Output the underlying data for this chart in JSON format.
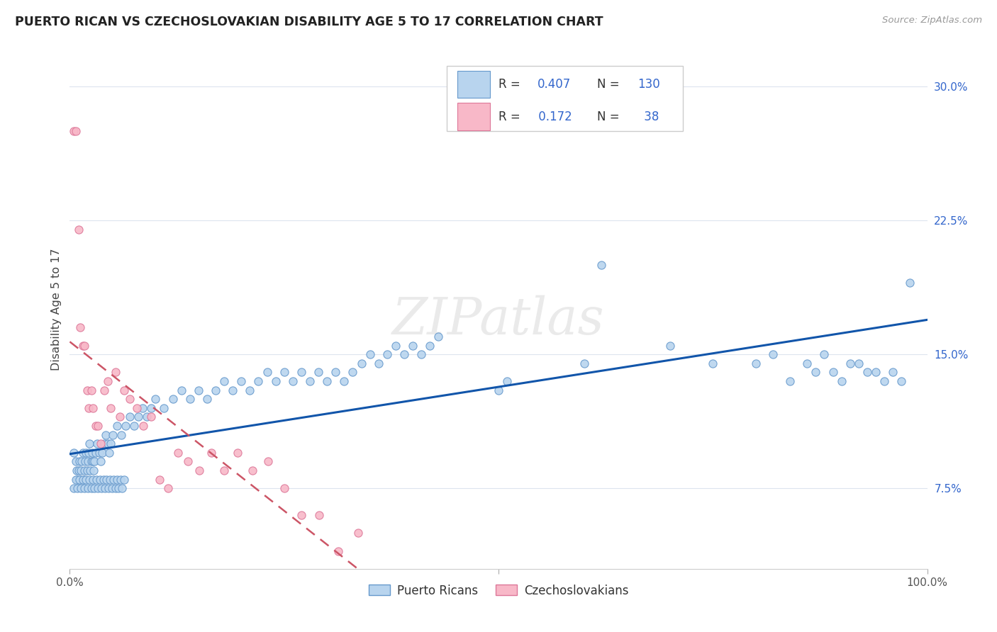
{
  "title": "PUERTO RICAN VS CZECHOSLOVAKIAN DISABILITY AGE 5 TO 17 CORRELATION CHART",
  "source": "Source: ZipAtlas.com",
  "ylabel": "Disability Age 5 to 17",
  "ytick_values": [
    0.075,
    0.15,
    0.225,
    0.3
  ],
  "ytick_labels": [
    "7.5%",
    "15.0%",
    "22.5%",
    "30.0%"
  ],
  "xlim": [
    0.0,
    1.0
  ],
  "ylim": [
    0.03,
    0.32
  ],
  "blue_face_color": "#b8d4ee",
  "blue_edge_color": "#6699cc",
  "pink_face_color": "#f8b8c8",
  "pink_edge_color": "#dd7799",
  "blue_line_color": "#1155aa",
  "pink_line_color": "#cc5566",
  "grid_color": "#dde4ee",
  "watermark_text": "ZIPatlas",
  "watermark_color": "#cccccc",
  "R_N_color": "#3366cc",
  "label_color": "#555555",
  "blue_R": "0.407",
  "blue_N": "130",
  "pink_R": "0.172",
  "pink_N": "38",
  "legend_label_blue": "Puerto Ricans",
  "legend_label_pink": "Czechoslovakians",
  "blue_scatter_x": [
    0.005,
    0.007,
    0.008,
    0.009,
    0.01,
    0.011,
    0.012,
    0.013,
    0.014,
    0.015,
    0.016,
    0.017,
    0.018,
    0.019,
    0.02,
    0.021,
    0.022,
    0.023,
    0.024,
    0.025,
    0.026,
    0.027,
    0.028,
    0.029,
    0.03,
    0.032,
    0.034,
    0.036,
    0.038,
    0.04,
    0.042,
    0.044,
    0.046,
    0.048,
    0.05,
    0.055,
    0.06,
    0.065,
    0.07,
    0.075,
    0.08,
    0.085,
    0.09,
    0.095,
    0.1,
    0.11,
    0.12,
    0.13,
    0.14,
    0.15,
    0.16,
    0.17,
    0.18,
    0.19,
    0.2,
    0.21,
    0.22,
    0.23,
    0.24,
    0.25,
    0.26,
    0.27,
    0.28,
    0.29,
    0.3,
    0.31,
    0.32,
    0.33,
    0.34,
    0.35,
    0.36,
    0.37,
    0.38,
    0.39,
    0.4,
    0.41,
    0.42,
    0.43,
    0.5,
    0.51,
    0.6,
    0.62,
    0.7,
    0.75,
    0.8,
    0.82,
    0.84,
    0.86,
    0.87,
    0.88,
    0.89,
    0.9,
    0.91,
    0.92,
    0.93,
    0.94,
    0.95,
    0.96,
    0.97,
    0.98,
    0.005,
    0.007,
    0.009,
    0.011,
    0.013,
    0.015,
    0.017,
    0.019,
    0.021,
    0.023,
    0.025,
    0.027,
    0.029,
    0.031,
    0.033,
    0.035,
    0.037,
    0.039,
    0.041,
    0.043,
    0.045,
    0.047,
    0.049,
    0.051,
    0.053,
    0.055,
    0.057,
    0.059,
    0.061,
    0.063
  ],
  "blue_scatter_y": [
    0.095,
    0.09,
    0.085,
    0.08,
    0.085,
    0.09,
    0.08,
    0.085,
    0.09,
    0.095,
    0.08,
    0.085,
    0.09,
    0.095,
    0.085,
    0.09,
    0.095,
    0.1,
    0.085,
    0.09,
    0.095,
    0.09,
    0.085,
    0.09,
    0.095,
    0.1,
    0.095,
    0.09,
    0.095,
    0.1,
    0.105,
    0.1,
    0.095,
    0.1,
    0.105,
    0.11,
    0.105,
    0.11,
    0.115,
    0.11,
    0.115,
    0.12,
    0.115,
    0.12,
    0.125,
    0.12,
    0.125,
    0.13,
    0.125,
    0.13,
    0.125,
    0.13,
    0.135,
    0.13,
    0.135,
    0.13,
    0.135,
    0.14,
    0.135,
    0.14,
    0.135,
    0.14,
    0.135,
    0.14,
    0.135,
    0.14,
    0.135,
    0.14,
    0.145,
    0.15,
    0.145,
    0.15,
    0.155,
    0.15,
    0.155,
    0.15,
    0.155,
    0.16,
    0.13,
    0.135,
    0.145,
    0.2,
    0.155,
    0.145,
    0.145,
    0.15,
    0.135,
    0.145,
    0.14,
    0.15,
    0.14,
    0.135,
    0.145,
    0.145,
    0.14,
    0.14,
    0.135,
    0.14,
    0.135,
    0.19,
    0.075,
    0.08,
    0.075,
    0.08,
    0.075,
    0.08,
    0.075,
    0.08,
    0.075,
    0.08,
    0.075,
    0.08,
    0.075,
    0.08,
    0.075,
    0.08,
    0.075,
    0.08,
    0.075,
    0.08,
    0.075,
    0.08,
    0.075,
    0.08,
    0.075,
    0.08,
    0.075,
    0.08,
    0.075,
    0.08
  ],
  "pink_scatter_x": [
    0.005,
    0.007,
    0.01,
    0.012,
    0.015,
    0.017,
    0.02,
    0.022,
    0.025,
    0.027,
    0.03,
    0.033,
    0.036,
    0.04,
    0.044,
    0.048,
    0.053,
    0.058,
    0.063,
    0.07,
    0.078,
    0.086,
    0.095,
    0.105,
    0.115,
    0.126,
    0.138,
    0.151,
    0.165,
    0.18,
    0.196,
    0.213,
    0.231,
    0.25,
    0.27,
    0.291,
    0.313,
    0.336
  ],
  "pink_scatter_y": [
    0.275,
    0.275,
    0.22,
    0.165,
    0.155,
    0.155,
    0.13,
    0.12,
    0.13,
    0.12,
    0.11,
    0.11,
    0.1,
    0.13,
    0.135,
    0.12,
    0.14,
    0.115,
    0.13,
    0.125,
    0.12,
    0.11,
    0.115,
    0.08,
    0.075,
    0.095,
    0.09,
    0.085,
    0.095,
    0.085,
    0.095,
    0.085,
    0.09,
    0.075,
    0.06,
    0.06,
    0.04,
    0.05
  ]
}
